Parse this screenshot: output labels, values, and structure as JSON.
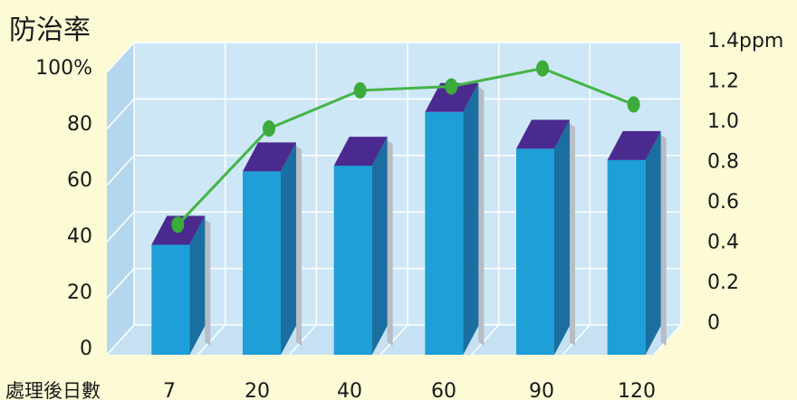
{
  "chart_data": {
    "type": "bar",
    "title": "防治率",
    "xlabel": "處理後日數",
    "categories": [
      "7",
      "20",
      "40",
      "60",
      "90",
      "120"
    ],
    "y_left": {
      "ticks": [
        "100%",
        "80",
        "60",
        "40",
        "20",
        "0"
      ],
      "ylim": [
        0,
        100
      ]
    },
    "y_right": {
      "ticks": [
        "1.4ppm",
        "1.2",
        "1.0",
        "0.8",
        "0.6",
        "0.4",
        "0.2",
        "0"
      ],
      "ylim": [
        0,
        1.4
      ]
    },
    "series": [
      {
        "type": "bar",
        "axis": "left",
        "values": [
          38,
          64,
          66,
          85,
          72,
          68
        ]
      },
      {
        "type": "line",
        "axis": "right",
        "values": [
          0.5,
          0.98,
          1.17,
          1.19,
          1.28,
          1.1
        ]
      }
    ],
    "grid": true,
    "style": "3d",
    "colors": {
      "bar_front": "#1e9fd8",
      "bar_side": "#1a6fa0",
      "bar_top": "#4b2a8f",
      "bar_shadow": "#b8bcc4",
      "line": "#44b447",
      "marker": "#3cab3c",
      "back_wall": "#cde7f6",
      "floor": "#c5e1f3",
      "side_wall": "#b4d7ee",
      "grid": "#ffffff",
      "background": "#fdfbd6"
    }
  }
}
